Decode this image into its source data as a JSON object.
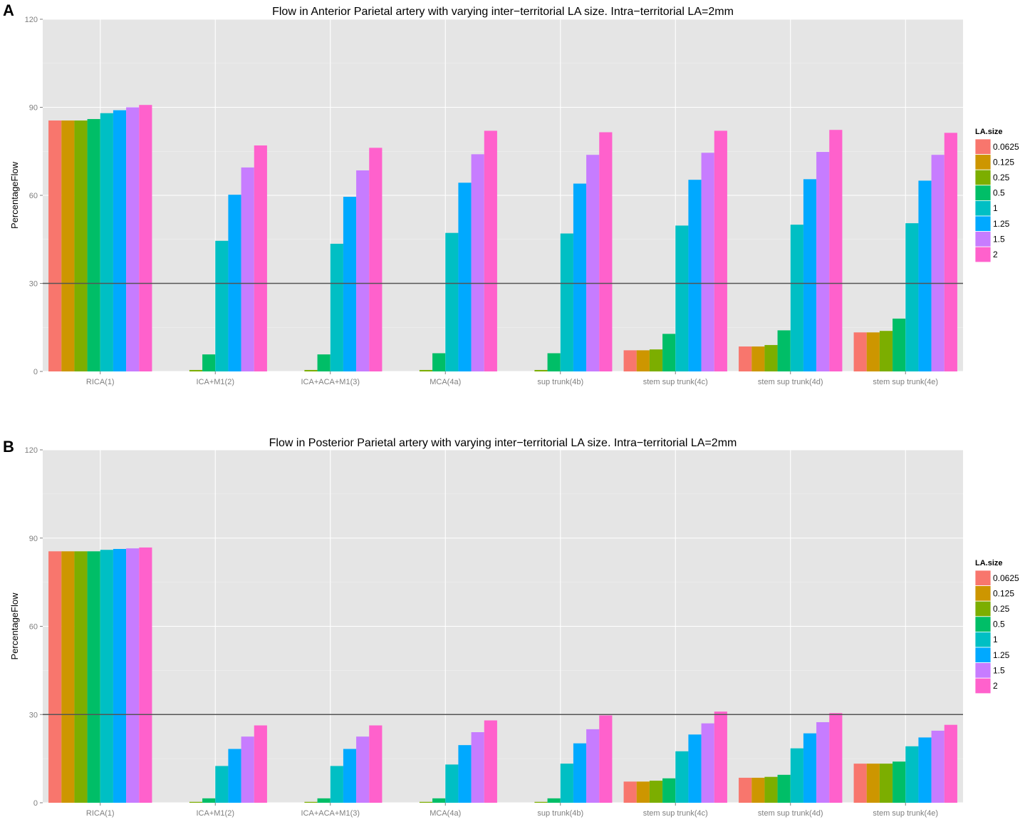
{
  "chart_data": [
    {
      "panel": "A",
      "type": "bar",
      "title": "Flow in Anterior Parietal artery with varying inter−territorial LA size. Intra−territorial LA=2mm",
      "xlabel": "",
      "ylabel": "PercentageFlow",
      "ylim": [
        0,
        120
      ],
      "yticks": [
        "0",
        "30",
        "60",
        "90",
        "120"
      ],
      "hline": 30,
      "grid": true,
      "legend": {
        "title": "LA.size",
        "position": "right"
      },
      "categories": [
        "RICA(1)",
        "ICA+M1(2)",
        "ICA+ACA+M1(3)",
        "MCA(4a)",
        "sup trunk(4b)",
        "stem sup trunk(4c)",
        "stem sup trunk(4d)",
        "stem sup trunk(4e)"
      ],
      "series": [
        {
          "name": "0.0625",
          "color": "#F8766D",
          "values": [
            85.5,
            0,
            0,
            0,
            0,
            7.2,
            8.5,
            13.3
          ]
        },
        {
          "name": "0.125",
          "color": "#CD9600",
          "values": [
            85.5,
            0,
            0,
            0,
            0,
            7.2,
            8.5,
            13.3
          ]
        },
        {
          "name": "0.25",
          "color": "#7CAE00",
          "values": [
            85.5,
            0.5,
            0.5,
            0.5,
            0.5,
            7.5,
            9.0,
            13.8
          ]
        },
        {
          "name": "0.5",
          "color": "#00BE67",
          "values": [
            86.0,
            5.8,
            5.8,
            6.2,
            6.2,
            12.8,
            14.0,
            18.0
          ]
        },
        {
          "name": "1",
          "color": "#00BFC4",
          "values": [
            88.0,
            44.5,
            43.5,
            47.2,
            47.0,
            49.7,
            50.0,
            50.5
          ]
        },
        {
          "name": "1.25",
          "color": "#00A9FF",
          "values": [
            89.0,
            60.2,
            59.5,
            64.3,
            64.0,
            65.3,
            65.5,
            65.0
          ]
        },
        {
          "name": "1.5",
          "color": "#C77CFF",
          "values": [
            90.0,
            69.5,
            68.5,
            74.0,
            73.8,
            74.5,
            74.8,
            73.8
          ]
        },
        {
          "name": "2",
          "color": "#FF61CC",
          "values": [
            90.8,
            77.0,
            76.2,
            82.0,
            81.5,
            82.0,
            82.3,
            81.3
          ]
        }
      ]
    },
    {
      "panel": "B",
      "type": "bar",
      "title": "Flow in Posterior Parietal artery with varying inter−territorial LA size. Intra−territorial LA=2mm",
      "xlabel": "",
      "ylabel": "PercentageFlow",
      "ylim": [
        0,
        120
      ],
      "yticks": [
        "0",
        "30",
        "60",
        "90",
        "120"
      ],
      "hline": 30,
      "grid": true,
      "legend": {
        "title": "LA.size",
        "position": "right"
      },
      "categories": [
        "RICA(1)",
        "ICA+M1(2)",
        "ICA+ACA+M1(3)",
        "MCA(4a)",
        "sup trunk(4b)",
        "stem sup trunk(4c)",
        "stem sup trunk(4d)",
        "stem sup trunk(4e)"
      ],
      "series": [
        {
          "name": "0.0625",
          "color": "#F8766D",
          "values": [
            85.5,
            0,
            0,
            0,
            0,
            7.2,
            8.5,
            13.3
          ]
        },
        {
          "name": "0.125",
          "color": "#CD9600",
          "values": [
            85.5,
            0,
            0,
            0,
            0,
            7.2,
            8.5,
            13.3
          ]
        },
        {
          "name": "0.25",
          "color": "#7CAE00",
          "values": [
            85.5,
            0.3,
            0.3,
            0.3,
            0.3,
            7.5,
            8.8,
            13.3
          ]
        },
        {
          "name": "0.5",
          "color": "#00BE67",
          "values": [
            85.5,
            1.5,
            1.5,
            1.5,
            1.5,
            8.3,
            9.5,
            14.0
          ]
        },
        {
          "name": "1",
          "color": "#00BFC4",
          "values": [
            86.0,
            12.5,
            12.5,
            13.0,
            13.3,
            17.5,
            18.5,
            19.2
          ]
        },
        {
          "name": "1.25",
          "color": "#00A9FF",
          "values": [
            86.3,
            18.3,
            18.3,
            19.6,
            20.2,
            23.2,
            23.6,
            22.2
          ]
        },
        {
          "name": "1.5",
          "color": "#C77CFF",
          "values": [
            86.5,
            22.5,
            22.5,
            24.0,
            25.0,
            27.0,
            27.4,
            24.5
          ]
        },
        {
          "name": "2",
          "color": "#FF61CC",
          "values": [
            86.8,
            26.3,
            26.3,
            28.0,
            29.7,
            31.0,
            30.5,
            26.5
          ]
        }
      ]
    }
  ]
}
